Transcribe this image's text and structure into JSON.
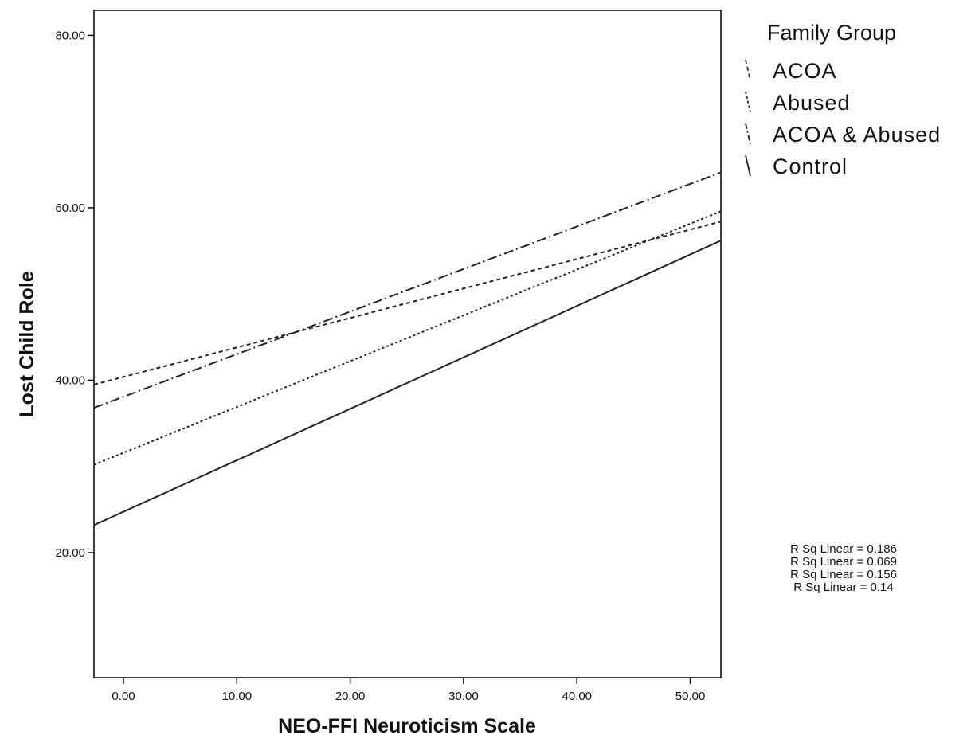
{
  "chart_data": {
    "type": "line",
    "xlabel": "NEO-FFI Neuroticism Scale",
    "ylabel": "Lost Child Role",
    "xlim": [
      -2.6,
      52.7
    ],
    "ylim": [
      5.5,
      82.9
    ],
    "x_ticks": [
      "0.00",
      "10.00",
      "20.00",
      "30.00",
      "40.00",
      "50.00"
    ],
    "y_ticks": [
      "20.00",
      "40.00",
      "60.00",
      "80.00"
    ],
    "legend": {
      "title": "Family Group",
      "placement": "right"
    },
    "series": [
      {
        "name": "ACOA",
        "dash": "5,4",
        "x": [
          -2.6,
          52.7
        ],
        "y": [
          39.5,
          58.4
        ]
      },
      {
        "name": "Abused",
        "dash": "3,3",
        "x": [
          -2.6,
          52.7
        ],
        "y": [
          30.2,
          59.6
        ]
      },
      {
        "name": "ACOA & Abused",
        "dash": "12,4,2,4",
        "x": [
          -2.6,
          52.7
        ],
        "y": [
          36.8,
          64.1
        ]
      },
      {
        "name": "Control",
        "dash": "",
        "x": [
          -2.6,
          52.7
        ],
        "y": [
          23.2,
          56.2
        ]
      }
    ],
    "annotations": [
      "R Sq Linear = 0.186",
      "R Sq Linear = 0.069",
      "R Sq Linear = 0.156",
      "R Sq Linear = 0.14"
    ]
  }
}
